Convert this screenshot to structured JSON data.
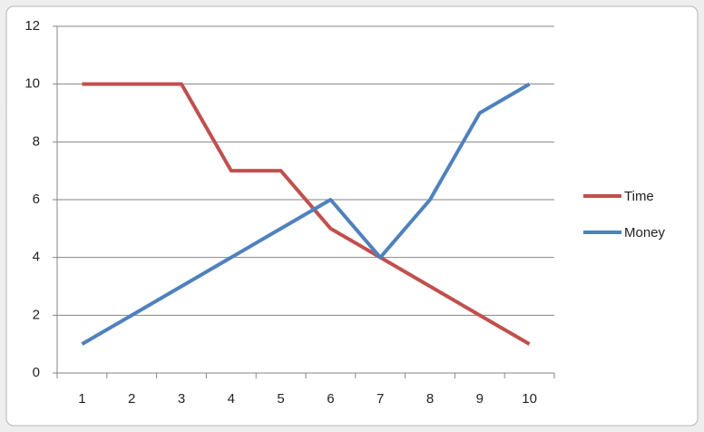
{
  "chart_data": {
    "type": "line",
    "categories": [
      "1",
      "2",
      "3",
      "4",
      "5",
      "6",
      "7",
      "8",
      "9",
      "10"
    ],
    "series": [
      {
        "name": "Time",
        "color": "#c0504d",
        "values": [
          10,
          10,
          10,
          7,
          7,
          5,
          4,
          3,
          2,
          1
        ]
      },
      {
        "name": "Money",
        "color": "#4f81bd",
        "values": [
          1,
          2,
          3,
          4,
          5,
          6,
          4,
          6,
          9,
          10
        ]
      }
    ],
    "ylim": [
      0,
      12
    ],
    "yticks": [
      0,
      2,
      4,
      6,
      8,
      10,
      12
    ],
    "grid": true,
    "legend": "right"
  }
}
